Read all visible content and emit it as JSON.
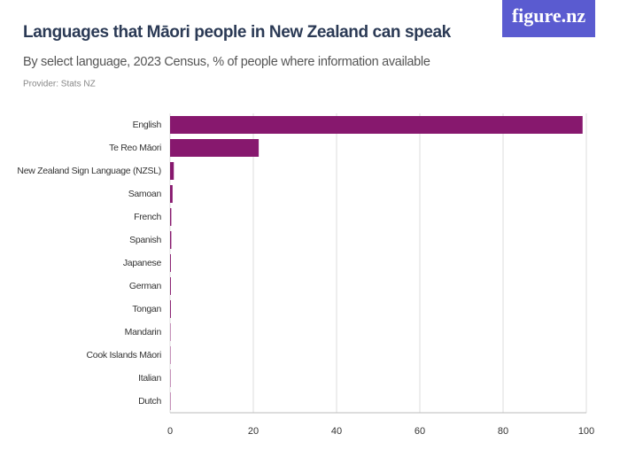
{
  "brand": "figure.nz",
  "chart_data": {
    "type": "bar",
    "orientation": "horizontal",
    "title": "Languages that Māori people in New Zealand can speak",
    "subtitle": "By select language, 2023 Census, % of people where information available",
    "provider": "Provider: Stats NZ",
    "categories": [
      "English",
      "Te Reo Māori",
      "New Zealand Sign Language (NZSL)",
      "Samoan",
      "French",
      "Spanish",
      "Japanese",
      "German",
      "Tongan",
      "Mandarin",
      "Cook Islands Māori",
      "Italian",
      "Dutch"
    ],
    "values": [
      99.1,
      21.3,
      0.9,
      0.6,
      0.3,
      0.3,
      0.2,
      0.2,
      0.2,
      0.1,
      0.1,
      0.1,
      0.1
    ],
    "color": "#87186e",
    "xlim": [
      0,
      100
    ],
    "xticks": [
      0,
      20,
      40,
      60,
      80,
      100
    ],
    "grid": true
  }
}
